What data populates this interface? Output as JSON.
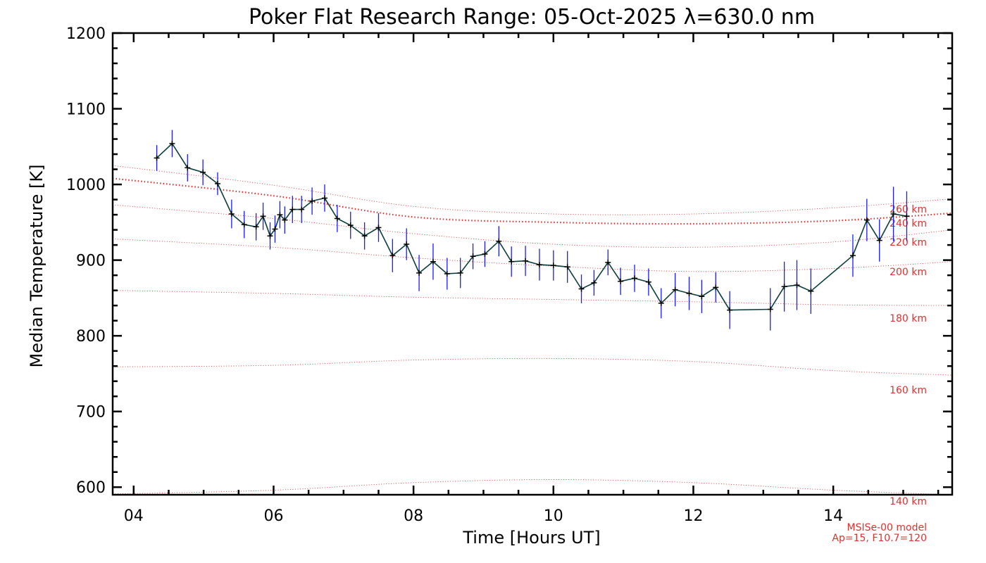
{
  "chart_data": {
    "type": "line",
    "title": "Poker Flat Research Range: 05-Oct-2025 λ=630.0 nm",
    "xlabel": "Time [Hours UT]",
    "ylabel": "Median Temperature [K]",
    "xlim": [
      3.7,
      15.7
    ],
    "ylim": [
      590,
      1200
    ],
    "xticks": [
      4,
      6,
      8,
      10,
      12,
      14
    ],
    "xtick_labels": [
      "04",
      "06",
      "08",
      "10",
      "12",
      "14"
    ],
    "yticks": [
      600,
      700,
      800,
      900,
      1000,
      1100,
      1200
    ],
    "ytick_labels": [
      "600",
      "700",
      "800",
      "900",
      "1000",
      "1100",
      "1200"
    ],
    "colors": {
      "line": "#0b3d3d",
      "errorbar": "#1a1aff",
      "model": "#e03030",
      "axes": "#000000"
    },
    "series": [
      {
        "name": "Median Temperature",
        "x": [
          4.33,
          4.55,
          4.77,
          4.99,
          5.2,
          5.4,
          5.58,
          5.75,
          5.85,
          5.95,
          6.02,
          6.09,
          6.16,
          6.27,
          6.4,
          6.55,
          6.73,
          6.91,
          7.1,
          7.3,
          7.5,
          7.7,
          7.9,
          8.08,
          8.28,
          8.48,
          8.67,
          8.85,
          9.02,
          9.22,
          9.4,
          9.6,
          9.8,
          10.0,
          10.2,
          10.4,
          10.58,
          10.78,
          10.96,
          11.16,
          11.36,
          11.54,
          11.74,
          11.94,
          12.12,
          12.32,
          12.52,
          13.1,
          13.3,
          13.48,
          13.68,
          14.28,
          14.48,
          14.66,
          14.86,
          15.05
        ],
        "y": [
          1035,
          1054,
          1022,
          1016,
          1001,
          961,
          947,
          944,
          958,
          932,
          941,
          960,
          953,
          967,
          967,
          978,
          982,
          955,
          946,
          932,
          943,
          906,
          921,
          883,
          898,
          882,
          883,
          905,
          908,
          925,
          898,
          899,
          894,
          893,
          891,
          862,
          870,
          897,
          872,
          876,
          871,
          843,
          861,
          856,
          852,
          864,
          834,
          835,
          865,
          867,
          859,
          906,
          953,
          926,
          961,
          958
        ],
        "err": [
          17,
          18,
          18,
          17,
          15,
          19,
          18,
          18,
          18,
          18,
          18,
          18,
          18,
          18,
          18,
          18,
          18,
          18,
          18,
          18,
          19,
          22,
          21,
          24,
          24,
          21,
          20,
          17,
          17,
          20,
          20,
          20,
          21,
          20,
          21,
          19,
          17,
          17,
          18,
          18,
          18,
          20,
          22,
          22,
          22,
          20,
          25,
          28,
          33,
          33,
          30,
          28,
          28,
          28,
          36,
          33
        ]
      }
    ],
    "model_curves": [
      {
        "label": "140 km",
        "x": [
          3.7,
          6,
          8,
          10,
          12,
          14,
          15.7
        ],
        "y": [
          591,
          596,
          606,
          610,
          606,
          596,
          590
        ]
      },
      {
        "label": "160 km",
        "x": [
          3.7,
          6,
          8,
          10,
          12,
          14,
          15.7
        ],
        "y": [
          759,
          761,
          768,
          770,
          766,
          754,
          748
        ]
      },
      {
        "label": "180 km",
        "x": [
          3.7,
          6,
          8,
          10,
          12,
          14,
          15.7
        ],
        "y": [
          860,
          856,
          851,
          848,
          845,
          841,
          840
        ]
      },
      {
        "label": "200 km",
        "x": [
          3.7,
          6,
          8,
          10,
          12,
          14,
          15.7
        ],
        "y": [
          928,
          917,
          903,
          892,
          885,
          889,
          898
        ]
      },
      {
        "label": "220 km",
        "x": [
          3.7,
          6,
          8,
          10,
          12,
          14,
          15.7
        ],
        "y": [
          973,
          955,
          935,
          921,
          917,
          924,
          940
        ]
      },
      {
        "label": "240 km",
        "x": [
          3.7,
          6,
          8,
          10,
          12,
          14,
          15.7
        ],
        "y": [
          1008,
          985,
          957,
          950,
          948,
          952,
          962
        ],
        "emphasis": true
      },
      {
        "label": "260 km",
        "x": [
          3.7,
          6,
          8,
          10,
          12,
          14,
          15.7
        ],
        "y": [
          1025,
          999,
          971,
          961,
          961,
          969,
          981
        ]
      }
    ],
    "model_note": [
      "MSISe-00 model",
      "Ap=15, F10.7=120"
    ]
  }
}
